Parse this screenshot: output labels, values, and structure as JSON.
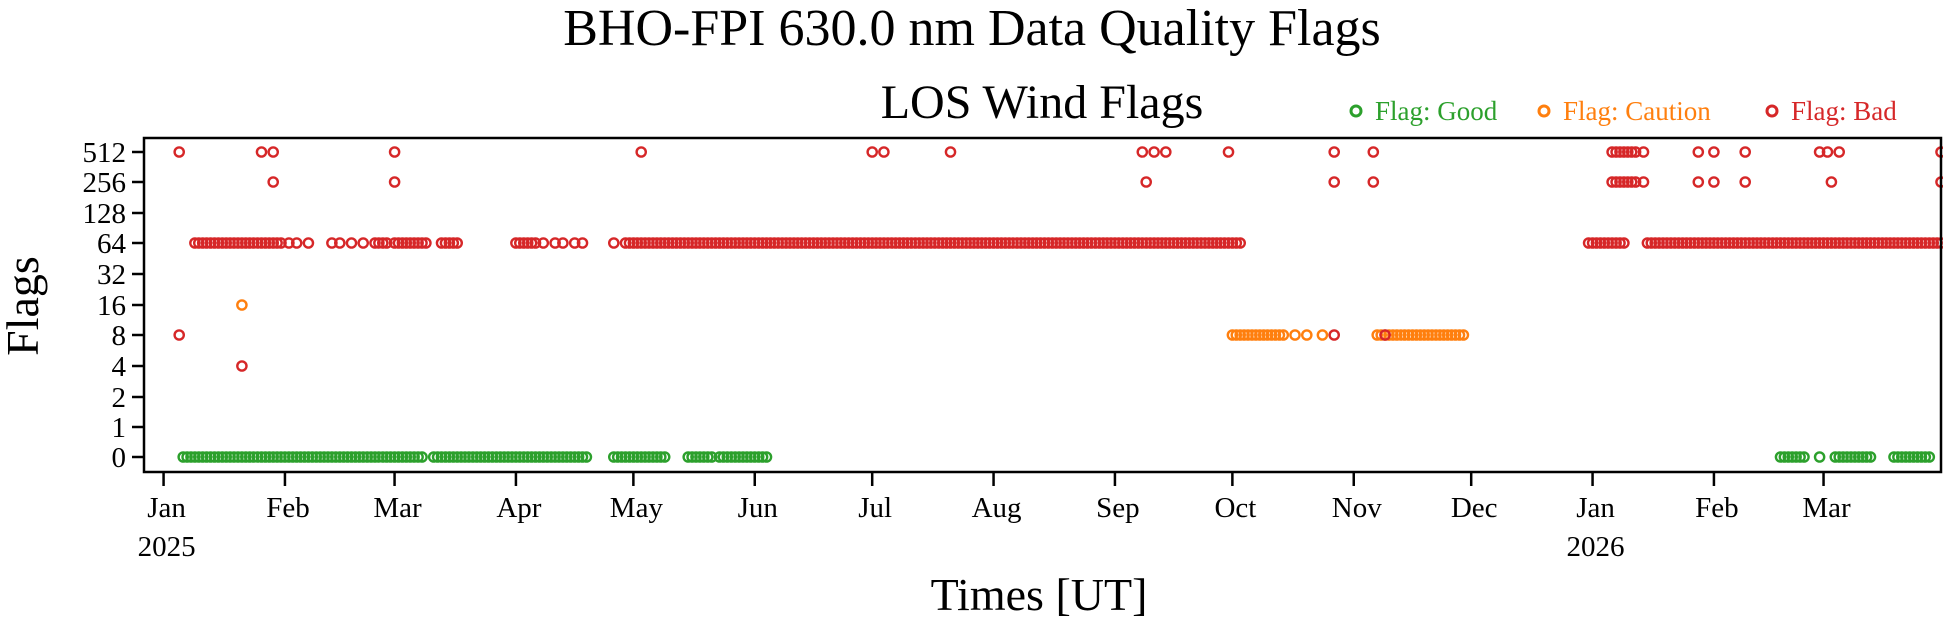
{
  "chart_data": {
    "type": "scatter",
    "title": "BHO-FPI 630.0 nm Data Quality Flags",
    "subtitle": "LOS Wind Flags",
    "xlabel": "Times [UT]",
    "ylabel": "Flags",
    "y_scale": "symlog (categorical power-of-two levels)",
    "y_ticks": [
      0,
      1,
      2,
      4,
      8,
      16,
      32,
      64,
      128,
      256,
      512
    ],
    "x_range": [
      "2024-12-27",
      "2026-03-31"
    ],
    "x_ticks": [
      {
        "date": "2025-01-01",
        "label": "Jan",
        "year": "2025"
      },
      {
        "date": "2025-02-01",
        "label": "Feb"
      },
      {
        "date": "2025-03-01",
        "label": "Mar"
      },
      {
        "date": "2025-04-01",
        "label": "Apr"
      },
      {
        "date": "2025-05-01",
        "label": "May"
      },
      {
        "date": "2025-06-01",
        "label": "Jun"
      },
      {
        "date": "2025-07-01",
        "label": "Jul"
      },
      {
        "date": "2025-08-01",
        "label": "Aug"
      },
      {
        "date": "2025-09-01",
        "label": "Sep"
      },
      {
        "date": "2025-10-01",
        "label": "Oct"
      },
      {
        "date": "2025-11-01",
        "label": "Nov"
      },
      {
        "date": "2025-12-01",
        "label": "Dec"
      },
      {
        "date": "2026-01-01",
        "label": "Jan",
        "year": "2026"
      },
      {
        "date": "2026-02-01",
        "label": "Feb"
      },
      {
        "date": "2026-03-01",
        "label": "Mar"
      }
    ],
    "grid": false,
    "legend_position": "top-right",
    "series": [
      {
        "name": "Flag: Good",
        "color": "#2ca02c",
        "points": [
          {
            "flag": 0,
            "ranges": [
              [
                "2025-01-06",
                "2025-03-08"
              ],
              [
                "2025-03-11",
                "2025-04-19"
              ],
              [
                "2025-04-26",
                "2025-05-09"
              ],
              [
                "2025-05-15",
                "2025-05-20"
              ],
              [
                "2025-05-23",
                "2025-06-04"
              ],
              [
                "2026-02-18",
                "2026-02-24"
              ],
              [
                "2026-03-04",
                "2026-03-13"
              ],
              [
                "2026-03-19",
                "2026-03-28"
              ]
            ],
            "dates": [
              "2025-05-21",
              "2026-02-28"
            ]
          }
        ]
      },
      {
        "name": "Flag: Caution",
        "color": "#ff7f0e",
        "points": [
          {
            "flag": 16,
            "dates": [
              "2025-01-21"
            ]
          },
          {
            "flag": 8,
            "ranges": [
              [
                "2025-10-01",
                "2025-10-14"
              ],
              [
                "2025-11-07",
                "2025-11-29"
              ]
            ],
            "dates": [
              "2025-10-17",
              "2025-10-20",
              "2025-10-24"
            ]
          }
        ]
      },
      {
        "name": "Flag: Bad",
        "color": "#d62728",
        "points": [
          {
            "flag": 512,
            "dates": [
              "2025-01-05",
              "2025-01-26",
              "2025-01-29",
              "2025-03-01",
              "2025-05-03",
              "2025-07-01",
              "2025-07-04",
              "2025-07-21",
              "2025-09-08",
              "2025-09-11",
              "2025-09-14",
              "2025-09-30",
              "2025-10-27",
              "2025-11-06",
              "2026-01-06",
              "2026-01-07",
              "2026-01-08",
              "2026-01-09",
              "2026-01-10",
              "2026-01-11",
              "2026-01-12",
              "2026-01-14",
              "2026-01-28",
              "2026-02-01",
              "2026-02-09",
              "2026-02-28",
              "2026-03-02",
              "2026-03-05",
              "2026-03-31"
            ]
          },
          {
            "flag": 256,
            "dates": [
              "2025-01-29",
              "2025-03-01",
              "2025-09-09",
              "2025-10-27",
              "2025-11-06",
              "2026-01-06",
              "2026-01-07",
              "2026-01-08",
              "2026-01-09",
              "2026-01-10",
              "2026-01-11",
              "2026-01-12",
              "2026-01-14",
              "2026-01-28",
              "2026-02-01",
              "2026-02-09",
              "2026-03-03",
              "2026-03-31"
            ]
          },
          {
            "flag": 64,
            "ranges": [
              [
                "2025-01-09",
                "2025-01-29"
              ],
              [
                "2025-03-01",
                "2025-03-09"
              ],
              [
                "2025-03-13",
                "2025-03-17"
              ],
              [
                "2025-04-01",
                "2025-04-06"
              ],
              [
                "2025-04-29",
                "2025-10-03"
              ],
              [
                "2025-12-31",
                "2026-01-09"
              ],
              [
                "2026-01-15",
                "2026-03-31"
              ]
            ],
            "dates": [
              "2025-01-30",
              "2025-01-31",
              "2025-02-02",
              "2025-02-04",
              "2025-02-07",
              "2025-02-13",
              "2025-02-15",
              "2025-02-18",
              "2025-02-21",
              "2025-02-24",
              "2025-02-25",
              "2025-02-26",
              "2025-02-27",
              "2025-04-08",
              "2025-04-11",
              "2025-04-13",
              "2025-04-16",
              "2025-04-18",
              "2025-04-26"
            ]
          },
          {
            "flag": 8,
            "dates": [
              "2025-01-05",
              "2025-10-27",
              "2025-11-09"
            ]
          },
          {
            "flag": 4,
            "dates": [
              "2025-01-21"
            ]
          }
        ]
      }
    ]
  }
}
